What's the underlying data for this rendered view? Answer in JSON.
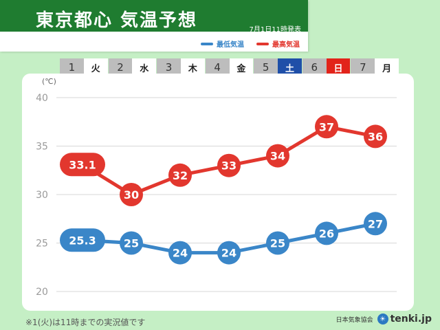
{
  "header": {
    "title": "東京都心 気温予想",
    "issued": "7月1日11時発表",
    "legend": [
      {
        "label": "最低気温",
        "color": "#3a86c8"
      },
      {
        "label": "最高気温",
        "color": "#e2372e"
      }
    ]
  },
  "days": [
    {
      "num": "1",
      "weekday": "火",
      "type": "weekday"
    },
    {
      "num": "2",
      "weekday": "水",
      "type": "weekday"
    },
    {
      "num": "3",
      "weekday": "木",
      "type": "weekday"
    },
    {
      "num": "4",
      "weekday": "金",
      "type": "weekday"
    },
    {
      "num": "5",
      "weekday": "土",
      "type": "sat"
    },
    {
      "num": "6",
      "weekday": "日",
      "type": "sun"
    },
    {
      "num": "7",
      "weekday": "月",
      "type": "weekday"
    }
  ],
  "chart_data": {
    "type": "line",
    "categories": [
      "1",
      "2",
      "3",
      "4",
      "5",
      "6",
      "7"
    ],
    "ylabel": "(℃)",
    "ylim": [
      20,
      40
    ],
    "yticks": [
      40,
      35,
      30,
      25,
      20
    ],
    "grid": true,
    "series": [
      {
        "name": "最高気温",
        "color": "#e2372e",
        "values": [
          33.1,
          30,
          32,
          33,
          34,
          37,
          36
        ],
        "labels": [
          "33.1",
          "30",
          "32",
          "33",
          "34",
          "37",
          "36"
        ]
      },
      {
        "name": "最低気温",
        "color": "#3a86c8",
        "values": [
          25.3,
          25,
          24,
          24,
          25,
          26,
          27
        ],
        "labels": [
          "25.3",
          "25",
          "24",
          "24",
          "25",
          "26",
          "27"
        ]
      }
    ]
  },
  "footer": {
    "note": "※1(火)は11時までの実況値です",
    "credit_org": "日本気象協会",
    "logo_text": "tenki.jp"
  }
}
